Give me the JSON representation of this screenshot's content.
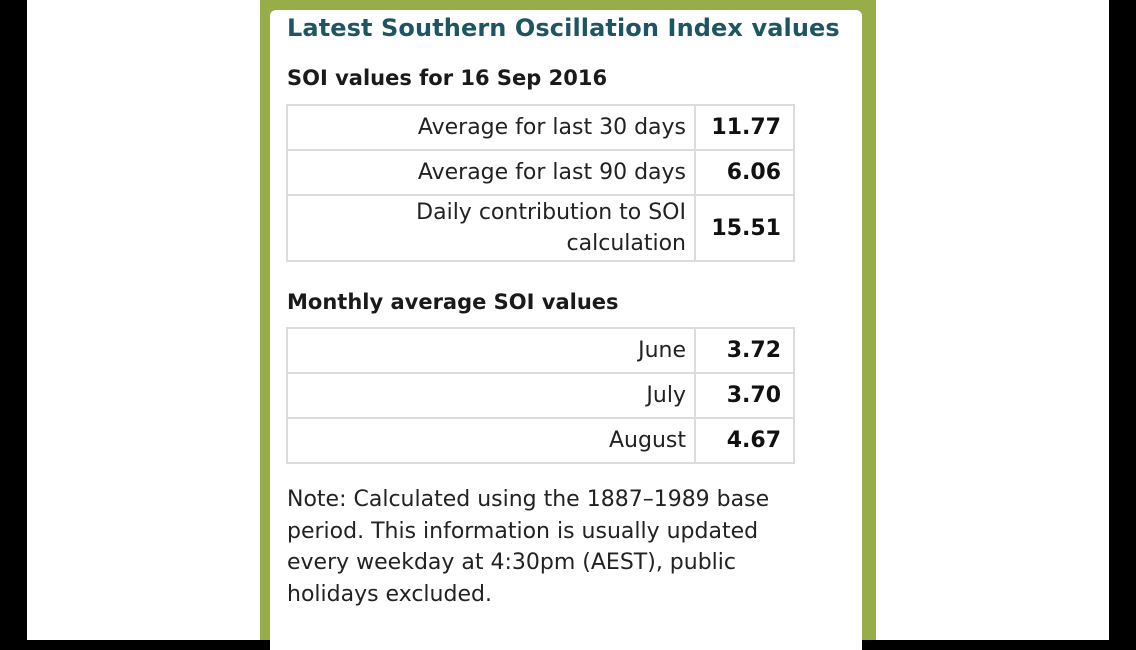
{
  "panel": {
    "title": "Latest Southern Oscillation Index values"
  },
  "soi_section": {
    "heading": "SOI values for 16 Sep 2016",
    "rows": [
      {
        "label": "Average for last 30 days",
        "value": "11.77"
      },
      {
        "label": "Average for last 90 days",
        "value": "6.06"
      },
      {
        "label": "Daily contribution to SOI calculation",
        "value": "15.51"
      }
    ]
  },
  "monthly_section": {
    "heading": "Monthly average SOI values",
    "rows": [
      {
        "label": "June",
        "value": "3.72"
      },
      {
        "label": "July",
        "value": "3.70"
      },
      {
        "label": "August",
        "value": "4.67"
      }
    ]
  },
  "note": "Note: Calculated using the 1887–1989 base period. This information is usually updated every weekday at 4:30pm (AEST), public holidays excluded.",
  "colors": {
    "frame_green": "#97ad4a",
    "title_teal": "#1e5562"
  }
}
